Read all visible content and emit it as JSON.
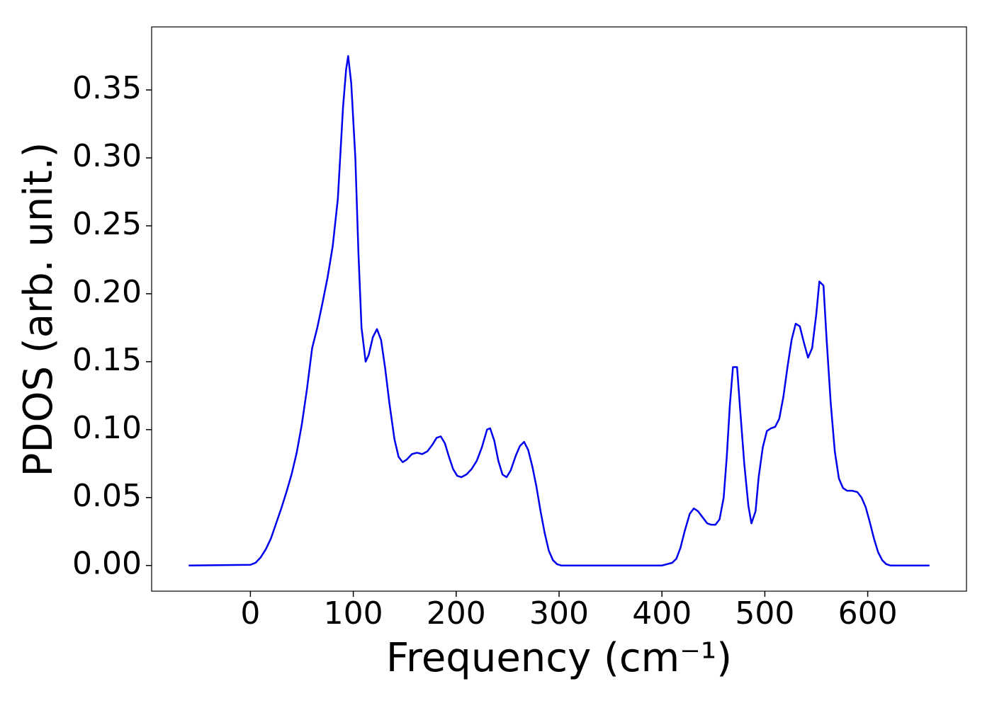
{
  "chart_data": {
    "type": "line",
    "xlabel": "Frequency (cm⁻¹)",
    "ylabel": "PDOS (arb. unit.)",
    "xlim": [
      -96,
      696
    ],
    "ylim": [
      -0.0189,
      0.3964
    ],
    "xticks": [
      0,
      100,
      200,
      300,
      400,
      500,
      600
    ],
    "yticks": [
      {
        "value": 0,
        "label": "0.00"
      },
      {
        "value": 0.05,
        "label": "0.05"
      },
      {
        "value": 0.1,
        "label": "0.10"
      },
      {
        "value": 0.15,
        "label": "0.15"
      },
      {
        "value": 0.2,
        "label": "0.20"
      },
      {
        "value": 0.25,
        "label": "0.25"
      },
      {
        "value": 0.3,
        "label": "0.30"
      },
      {
        "value": 0.35,
        "label": "0.35"
      }
    ],
    "series": [
      {
        "color": "#0000ee",
        "x": [
          -60,
          0,
          5,
          10,
          15,
          20,
          25,
          30,
          35,
          40,
          45,
          50,
          55,
          60,
          65,
          70,
          75,
          80,
          85,
          90,
          93,
          95,
          98,
          102,
          105,
          108,
          112,
          115,
          119,
          123,
          127,
          131,
          135,
          140,
          144,
          148,
          152,
          157,
          162,
          167,
          172,
          177,
          181,
          185,
          189,
          193,
          197,
          201,
          205,
          210,
          215,
          220,
          225,
          230,
          233,
          237,
          241,
          245,
          249,
          253,
          258,
          262,
          266,
          270,
          274,
          278,
          282,
          286,
          290,
          294,
          298,
          302,
          400,
          405,
          410,
          414,
          418,
          422,
          427,
          431,
          435,
          440,
          444,
          448,
          452,
          456,
          460,
          463,
          466,
          469,
          473,
          476,
          480,
          484,
          487,
          491,
          494,
          498,
          502,
          506,
          510,
          514,
          518,
          522,
          526,
          530,
          534,
          538,
          542,
          546,
          550,
          553,
          557,
          560,
          564,
          568,
          572,
          576,
          580,
          585,
          590,
          594,
          598,
          602,
          606,
          610,
          614,
          618,
          622,
          660
        ],
        "values": [
          0,
          0.0005,
          0.002,
          0.006,
          0.012,
          0.02,
          0.031,
          0.042,
          0.054,
          0.067,
          0.083,
          0.104,
          0.13,
          0.16,
          0.175,
          0.193,
          0.212,
          0.235,
          0.27,
          0.337,
          0.365,
          0.375,
          0.355,
          0.3,
          0.23,
          0.175,
          0.15,
          0.155,
          0.168,
          0.174,
          0.166,
          0.145,
          0.12,
          0.093,
          0.08,
          0.076,
          0.078,
          0.082,
          0.083,
          0.082,
          0.084,
          0.089,
          0.094,
          0.095,
          0.09,
          0.08,
          0.071,
          0.066,
          0.065,
          0.067,
          0.071,
          0.077,
          0.087,
          0.1,
          0.101,
          0.092,
          0.077,
          0.067,
          0.065,
          0.07,
          0.081,
          0.088,
          0.091,
          0.085,
          0.073,
          0.058,
          0.04,
          0.024,
          0.011,
          0.004,
          0.001,
          0,
          0,
          0.001,
          0.002,
          0.005,
          0.013,
          0.025,
          0.038,
          0.042,
          0.04,
          0.035,
          0.031,
          0.03,
          0.03,
          0.034,
          0.05,
          0.08,
          0.118,
          0.146,
          0.146,
          0.115,
          0.075,
          0.044,
          0.031,
          0.04,
          0.065,
          0.087,
          0.099,
          0.101,
          0.102,
          0.108,
          0.124,
          0.146,
          0.166,
          0.178,
          0.176,
          0.164,
          0.153,
          0.16,
          0.185,
          0.209,
          0.206,
          0.167,
          0.12,
          0.084,
          0.064,
          0.057,
          0.055,
          0.055,
          0.054,
          0.05,
          0.043,
          0.032,
          0.02,
          0.01,
          0.004,
          0.001,
          0,
          0
        ]
      }
    ]
  }
}
